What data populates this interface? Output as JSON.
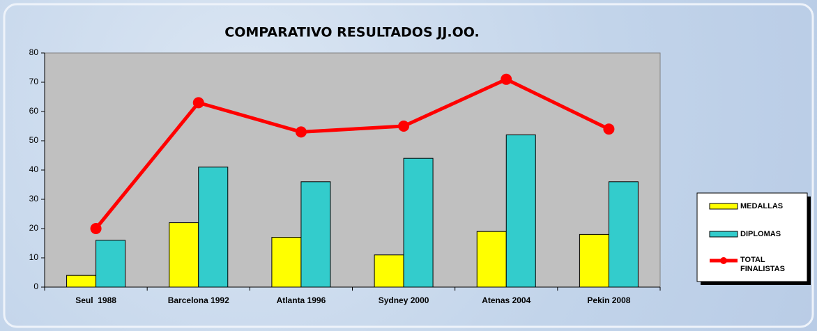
{
  "chart_data": {
    "type": "bar",
    "title": "COMPARATIVO RESULTADOS JJ.OO.",
    "categories": [
      "Seul  1988",
      "Barcelona 1992",
      "Atlanta 1996",
      "Sydney 2000",
      "Atenas 2004",
      "Pekin 2008"
    ],
    "series": [
      {
        "name": "MEDALLAS",
        "color": "#ffff00",
        "values": [
          4,
          22,
          17,
          11,
          19,
          18
        ]
      },
      {
        "name": "DIPLOMAS",
        "color": "#33cccc",
        "values": [
          16,
          41,
          36,
          44,
          52,
          36
        ]
      },
      {
        "name": "TOTAL FINALISTAS",
        "color": "#ff0000",
        "type": "line",
        "values": [
          20,
          63,
          53,
          55,
          71,
          54
        ]
      }
    ],
    "ylim": [
      0,
      80
    ],
    "yticks": [
      0,
      10,
      20,
      30,
      40,
      50,
      60,
      70,
      80
    ],
    "grid": false,
    "legend": "right"
  }
}
